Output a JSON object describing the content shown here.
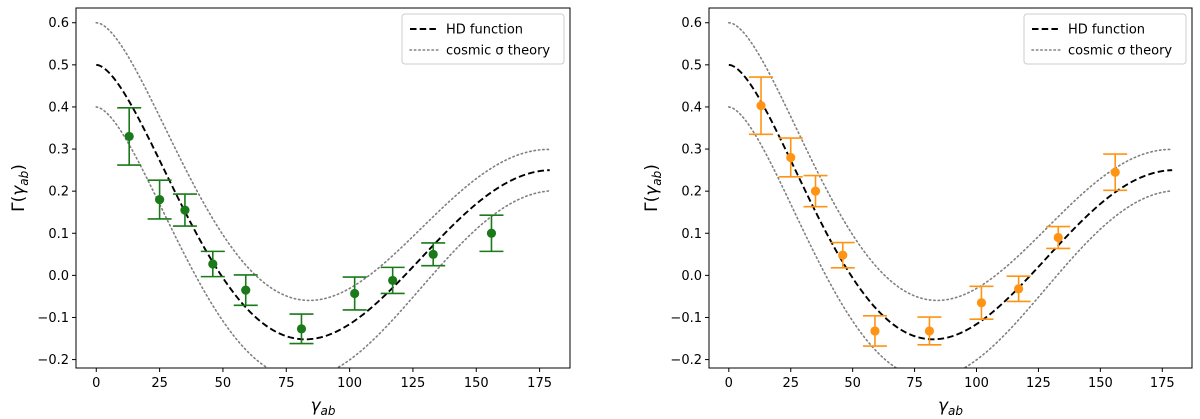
{
  "chart_data": [
    {
      "type": "scatter",
      "panel": "left",
      "title": "",
      "xlabel": "γ_ab",
      "ylabel": "Γ(γ_ab)",
      "xlabel_parts": {
        "main": "γ",
        "sub": "ab"
      },
      "ylabel_parts": {
        "pre": "Γ(",
        "main": "γ",
        "sub": "ab",
        "post": ")"
      },
      "xlim": [
        -8,
        187
      ],
      "ylim": [
        -0.22,
        0.635
      ],
      "xticks": [
        0,
        25,
        50,
        75,
        100,
        125,
        150,
        175
      ],
      "xtick_labels": [
        "0",
        "25",
        "50",
        "75",
        "100",
        "125",
        "150",
        "175"
      ],
      "yticks": [
        -0.2,
        -0.1,
        0.0,
        0.1,
        0.2,
        0.3,
        0.4,
        0.5,
        0.6
      ],
      "ytick_labels": [
        "−0.2",
        "−0.1",
        "0.0",
        "0.1",
        "0.2",
        "0.3",
        "0.4",
        "0.5",
        "0.6"
      ],
      "grid": false,
      "legend_position": "top-right",
      "legend": [
        {
          "label": "HD function",
          "style": "dashed",
          "color": "#000000"
        },
        {
          "label": "cosmic σ theory",
          "style": "dotted",
          "color": "#808080"
        }
      ],
      "series": [
        {
          "name": "HD function",
          "kind": "curve",
          "function": "hd",
          "x_range": [
            0,
            179
          ],
          "color": "#000000"
        },
        {
          "name": "cosmic σ theory (upper)",
          "kind": "curve",
          "function": "hd_upper",
          "x_range": [
            0,
            179
          ],
          "color": "#808080"
        },
        {
          "name": "cosmic σ theory (lower)",
          "kind": "curve",
          "function": "hd_lower",
          "x_range": [
            0,
            179
          ],
          "color": "#808080"
        },
        {
          "name": "measurements",
          "kind": "errorbar",
          "color": "#1a7a1a",
          "points": [
            {
              "x": 13,
              "y": 0.33,
              "err": 0.068
            },
            {
              "x": 25,
              "y": 0.18,
              "err": 0.046
            },
            {
              "x": 35,
              "y": 0.155,
              "err": 0.038
            },
            {
              "x": 46,
              "y": 0.027,
              "err": 0.03
            },
            {
              "x": 59,
              "y": -0.035,
              "err": 0.036
            },
            {
              "x": 81,
              "y": -0.127,
              "err": 0.035
            },
            {
              "x": 102,
              "y": -0.043,
              "err": 0.039
            },
            {
              "x": 117,
              "y": -0.012,
              "err": 0.031
            },
            {
              "x": 133,
              "y": 0.05,
              "err": 0.027
            },
            {
              "x": 156,
              "y": 0.1,
              "err": 0.043
            }
          ]
        }
      ]
    },
    {
      "type": "scatter",
      "panel": "right",
      "title": "",
      "xlabel": "γ_ab",
      "ylabel": "Γ(γ_ab)",
      "xlabel_parts": {
        "main": "γ",
        "sub": "ab"
      },
      "ylabel_parts": {
        "pre": "Γ(",
        "main": "γ",
        "sub": "ab",
        "post": ")"
      },
      "xlim": [
        -8,
        187
      ],
      "ylim": [
        -0.22,
        0.635
      ],
      "xticks": [
        0,
        25,
        50,
        75,
        100,
        125,
        150,
        175
      ],
      "xtick_labels": [
        "0",
        "25",
        "50",
        "75",
        "100",
        "125",
        "150",
        "175"
      ],
      "yticks": [
        -0.2,
        -0.1,
        0.0,
        0.1,
        0.2,
        0.3,
        0.4,
        0.5,
        0.6
      ],
      "ytick_labels": [
        "−0.2",
        "−0.1",
        "0.0",
        "0.1",
        "0.2",
        "0.3",
        "0.4",
        "0.5",
        "0.6"
      ],
      "grid": false,
      "legend_position": "top-right",
      "legend": [
        {
          "label": "HD function",
          "style": "dashed",
          "color": "#000000"
        },
        {
          "label": "cosmic σ theory",
          "style": "dotted",
          "color": "#808080"
        }
      ],
      "series": [
        {
          "name": "HD function",
          "kind": "curve",
          "function": "hd",
          "x_range": [
            0,
            179
          ],
          "color": "#000000"
        },
        {
          "name": "cosmic σ theory (upper)",
          "kind": "curve",
          "function": "hd_upper",
          "x_range": [
            0,
            179
          ],
          "color": "#808080"
        },
        {
          "name": "cosmic σ theory (lower)",
          "kind": "curve",
          "function": "hd_lower",
          "x_range": [
            0,
            179
          ],
          "color": "#808080"
        },
        {
          "name": "measurements",
          "kind": "errorbar",
          "color": "#ff9414",
          "points": [
            {
              "x": 13,
              "y": 0.403,
              "err": 0.068
            },
            {
              "x": 25,
              "y": 0.28,
              "err": 0.046
            },
            {
              "x": 35,
              "y": 0.2,
              "err": 0.037
            },
            {
              "x": 46,
              "y": 0.048,
              "err": 0.03
            },
            {
              "x": 59,
              "y": -0.132,
              "err": 0.036
            },
            {
              "x": 81,
              "y": -0.132,
              "err": 0.033
            },
            {
              "x": 102,
              "y": -0.065,
              "err": 0.039
            },
            {
              "x": 117,
              "y": -0.032,
              "err": 0.03
            },
            {
              "x": 133,
              "y": 0.09,
              "err": 0.026
            },
            {
              "x": 156,
              "y": 0.245,
              "err": 0.043
            }
          ]
        }
      ]
    }
  ]
}
